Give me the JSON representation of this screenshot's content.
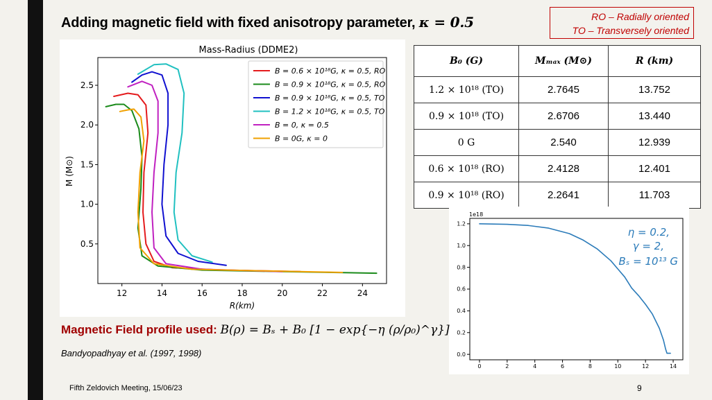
{
  "slide": {
    "title": "Adding magnetic field with fixed anisotropy parameter, ",
    "title_math": "κ = 0.5",
    "legend_lines": [
      "RO – Radially oriented",
      "TO – Transversely oriented"
    ],
    "mf_label": "Magnetic Field profile used:",
    "mf_equation": "B(ρ) = Bₛ + B₀ [1 − exp{−η (ρ/ρ₀)^γ}]",
    "reference": "Bandyopadhyay et al. (1997, 1998)",
    "footer": "Fifth Zeldovich Meeting, 15/06/23",
    "page": "9"
  },
  "table": {
    "headers": [
      "B₀ (G)",
      "Mₘₐₓ (M⊙)",
      "R (km)"
    ],
    "rows": [
      [
        "1.2 × 10¹⁸ (TO)",
        "2.7645",
        "13.752"
      ],
      [
        "0.9 × 10¹⁸ (TO)",
        "2.6706",
        "13.440"
      ],
      [
        "0 G",
        "2.540",
        "12.939"
      ],
      [
        "0.6 × 10¹⁸ (RO)",
        "2.4128",
        "12.401"
      ],
      [
        "0.9 × 10¹⁸ (RO)",
        "2.2641",
        "11.703"
      ]
    ]
  },
  "chart_data": [
    {
      "type": "line",
      "title": "Mass-Radius (DDME2)",
      "xlabel": "R(km)",
      "ylabel": "M (M⊙)",
      "xlim": [
        10.8,
        25.2
      ],
      "ylim": [
        0.0,
        2.85
      ],
      "xticks": [
        "12",
        "14",
        "16",
        "18",
        "20",
        "22",
        "24"
      ],
      "yticks": [
        "0.5",
        "1.0",
        "1.5",
        "2.0",
        "2.5"
      ],
      "legend_position": "top-right",
      "series": [
        {
          "name": "B = 0.6 × 10¹⁸G, κ = 0.5, RO",
          "color": "#e41a1c",
          "points": [
            [
              20.9,
              0.15
            ],
            [
              17,
              0.17
            ],
            [
              14.5,
              0.2
            ],
            [
              13.6,
              0.28
            ],
            [
              13.2,
              0.5
            ],
            [
              13.05,
              0.9
            ],
            [
              13.1,
              1.4
            ],
            [
              13.3,
              1.9
            ],
            [
              13.2,
              2.25
            ],
            [
              12.8,
              2.38
            ],
            [
              12.3,
              2.4
            ],
            [
              11.6,
              2.36
            ]
          ]
        },
        {
          "name": "B = 0.9 × 10¹⁸G, κ = 0.5, RO",
          "color": "#1a8a1a",
          "points": [
            [
              24.7,
              0.13
            ],
            [
              20,
              0.15
            ],
            [
              16,
              0.17
            ],
            [
              13.8,
              0.22
            ],
            [
              13,
              0.35
            ],
            [
              12.8,
              0.7
            ],
            [
              12.95,
              1.2
            ],
            [
              13.0,
              1.6
            ],
            [
              12.85,
              1.95
            ],
            [
              12.5,
              2.18
            ],
            [
              12.1,
              2.26
            ],
            [
              11.7,
              2.26
            ],
            [
              11.2,
              2.23
            ]
          ]
        },
        {
          "name": "B = 0.9 × 10¹⁸G, κ = 0.5, TO",
          "color": "#1010d0",
          "points": [
            [
              17.2,
              0.23
            ],
            [
              15.8,
              0.28
            ],
            [
              14.8,
              0.38
            ],
            [
              14.2,
              0.6
            ],
            [
              14.0,
              1.0
            ],
            [
              14.1,
              1.5
            ],
            [
              14.3,
              2.0
            ],
            [
              14.3,
              2.4
            ],
            [
              14.0,
              2.63
            ],
            [
              13.5,
              2.67
            ],
            [
              13.0,
              2.63
            ],
            [
              12.5,
              2.54
            ]
          ]
        },
        {
          "name": "B = 1.2 × 10¹⁸G, κ = 0.5, TO",
          "color": "#20c0c0",
          "points": [
            [
              16.5,
              0.27
            ],
            [
              15.5,
              0.35
            ],
            [
              14.8,
              0.55
            ],
            [
              14.6,
              0.9
            ],
            [
              14.7,
              1.4
            ],
            [
              15.0,
              1.9
            ],
            [
              15.1,
              2.4
            ],
            [
              14.8,
              2.7
            ],
            [
              14.2,
              2.77
            ],
            [
              13.6,
              2.76
            ],
            [
              12.8,
              2.64
            ]
          ]
        },
        {
          "name": "B = 0, κ = 0.5",
          "color": "#c020c0",
          "points": [
            [
              20,
              0.15
            ],
            [
              16,
              0.18
            ],
            [
              14.2,
              0.25
            ],
            [
              13.6,
              0.45
            ],
            [
              13.5,
              0.9
            ],
            [
              13.6,
              1.4
            ],
            [
              13.8,
              1.9
            ],
            [
              13.8,
              2.3
            ],
            [
              13.5,
              2.5
            ],
            [
              13.0,
              2.55
            ],
            [
              12.3,
              2.48
            ]
          ]
        },
        {
          "name": "B = 0G, κ = 0",
          "color": "#f0a000",
          "points": [
            [
              23.0,
              0.14
            ],
            [
              19,
              0.16
            ],
            [
              15.5,
              0.18
            ],
            [
              13.6,
              0.25
            ],
            [
              12.9,
              0.45
            ],
            [
              12.8,
              0.9
            ],
            [
              12.9,
              1.4
            ],
            [
              13.1,
              1.8
            ],
            [
              12.95,
              2.1
            ],
            [
              12.6,
              2.2
            ],
            [
              12.3,
              2.19
            ],
            [
              11.9,
              2.17
            ]
          ]
        }
      ]
    },
    {
      "type": "line",
      "title": "",
      "xlabel": "",
      "ylabel": "",
      "xlim": [
        -0.7,
        14.7
      ],
      "ylim": [
        -0.05,
        1.25
      ],
      "xticks": [
        "0",
        "2",
        "4",
        "6",
        "8",
        "10",
        "12",
        "14"
      ],
      "yticks": [
        "0.0",
        "0.2",
        "0.4",
        "0.6",
        "0.8",
        "1.0",
        "1.2"
      ],
      "exponent_label": "1e18",
      "annotation": [
        "η = 0.2,",
        "γ = 2,",
        "Bₛ = 10¹³ G"
      ],
      "series": [
        {
          "color": "#2b7bb9",
          "points": [
            [
              0,
              1.2
            ],
            [
              2,
              1.195
            ],
            [
              3.5,
              1.185
            ],
            [
              5,
              1.16
            ],
            [
              6.5,
              1.11
            ],
            [
              7.5,
              1.05
            ],
            [
              8.5,
              0.97
            ],
            [
              9.5,
              0.86
            ],
            [
              10.5,
              0.71
            ],
            [
              11,
              0.61
            ],
            [
              11.5,
              0.54
            ],
            [
              12,
              0.46
            ],
            [
              12.5,
              0.37
            ],
            [
              13,
              0.24
            ],
            [
              13.3,
              0.13
            ],
            [
              13.45,
              0.05
            ],
            [
              13.55,
              0.01
            ],
            [
              13.8,
              0.01
            ]
          ]
        }
      ]
    }
  ]
}
